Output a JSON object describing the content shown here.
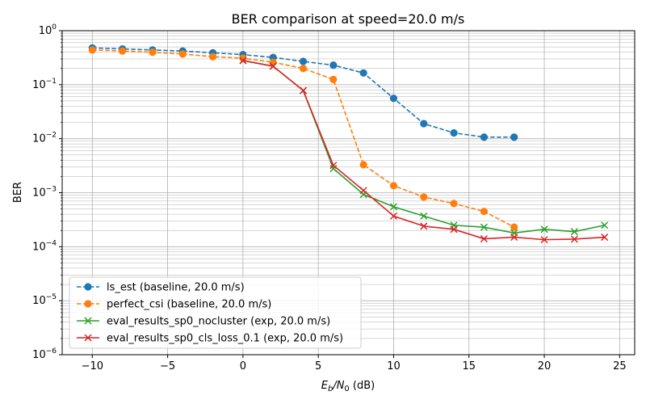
{
  "chart_data": {
    "type": "line",
    "title": "BER comparison at speed=20.0 m/s",
    "xlabel": {
      "pre": "E",
      "sub1": "b",
      "mid": "/N",
      "sub2": "0",
      "post": " (dB)"
    },
    "ylabel": "BER",
    "xlim": [
      -12,
      26
    ],
    "ylim": [
      1e-06,
      1
    ],
    "yscale": "log",
    "grid": true,
    "legend_position": "lower-left",
    "x_ticks": [
      -10,
      -5,
      0,
      5,
      10,
      15,
      20,
      25
    ],
    "x_tick_labels": [
      "−10",
      "−5",
      "0",
      "5",
      "10",
      "15",
      "20",
      "25"
    ],
    "y_tick_labels": [
      {
        "base": "10",
        "exp": "0"
      },
      {
        "base": "10",
        "exp": "−1"
      },
      {
        "base": "10",
        "exp": "−2"
      },
      {
        "base": "10",
        "exp": "−3"
      },
      {
        "base": "10",
        "exp": "−4"
      },
      {
        "base": "10",
        "exp": "−5"
      },
      {
        "base": "10",
        "exp": "−6"
      }
    ],
    "series": [
      {
        "name": "ls_est (baseline, 20.0 m/s)",
        "color": "#1f77b4",
        "dashed": true,
        "marker": "circle",
        "x": [
          -10,
          -8,
          -6,
          -4,
          -2,
          0,
          2,
          4,
          6,
          8,
          10,
          12,
          14,
          16,
          18
        ],
        "y": [
          0.48,
          0.46,
          0.44,
          0.42,
          0.39,
          0.36,
          0.32,
          0.27,
          0.23,
          0.165,
          0.056,
          0.019,
          0.0128,
          0.0107,
          0.0107
        ]
      },
      {
        "name": "perfect_csi (baseline, 20.0 m/s)",
        "color": "#ff7f0e",
        "dashed": true,
        "marker": "circle",
        "x": [
          -10,
          -8,
          -6,
          -4,
          -2,
          0,
          2,
          4,
          6,
          8,
          10,
          12,
          14,
          16,
          18
        ],
        "y": [
          0.44,
          0.42,
          0.4,
          0.37,
          0.33,
          0.31,
          0.26,
          0.2,
          0.125,
          0.0033,
          0.00135,
          0.00083,
          0.00063,
          0.00045,
          0.00023
        ]
      },
      {
        "name": "eval_results_sp0_nocluster (exp, 20.0 m/s)",
        "color": "#2ca02c",
        "dashed": false,
        "marker": "x",
        "x": [
          0,
          2,
          4,
          6,
          8,
          10,
          12,
          14,
          16,
          18,
          20,
          22,
          24
        ],
        "y": [
          0.28,
          0.22,
          0.078,
          0.0028,
          0.00093,
          0.00055,
          0.00037,
          0.00025,
          0.00023,
          0.00018,
          0.00021,
          0.00019,
          0.00025
        ]
      },
      {
        "name": "eval_results_sp0_cls_loss_0.1 (exp, 20.0 m/s)",
        "color": "#d62728",
        "dashed": false,
        "marker": "x",
        "x": [
          0,
          2,
          4,
          6,
          8,
          10,
          12,
          14,
          16,
          18,
          20,
          22,
          24
        ],
        "y": [
          0.28,
          0.22,
          0.078,
          0.0032,
          0.0011,
          0.00037,
          0.00024,
          0.00021,
          0.00014,
          0.00015,
          0.000135,
          0.000138,
          0.00015
        ]
      }
    ]
  }
}
